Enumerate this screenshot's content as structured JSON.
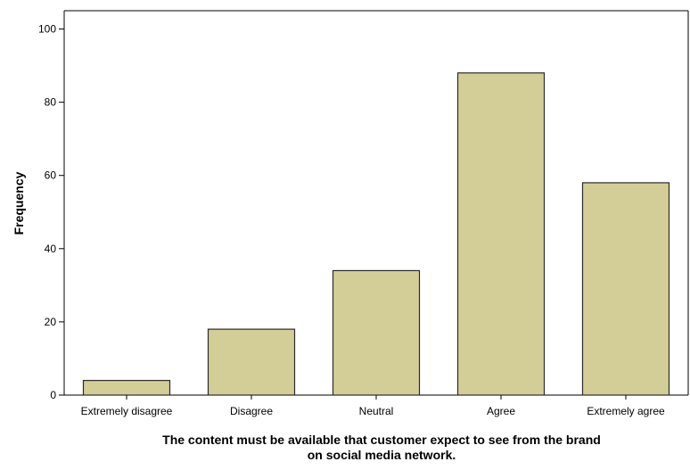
{
  "chart_data": {
    "type": "bar",
    "categories": [
      "Extremely disagree",
      "Disagree",
      "Neutral",
      "Agree",
      "Extremely agree"
    ],
    "values": [
      4,
      18,
      34,
      88,
      58
    ],
    "xlabel_lines": [
      "The content must be available that customer expect to see from the brand",
      "on social media network."
    ],
    "ylabel": "Frequency",
    "ylim": [
      0,
      105
    ],
    "yticks": [
      0,
      20,
      40,
      60,
      80,
      100
    ],
    "grid": false,
    "legend": "none",
    "colors": {
      "bar_fill": "#D3CE97",
      "bar_stroke": "#2b2b2b",
      "axis": "#000000"
    }
  }
}
